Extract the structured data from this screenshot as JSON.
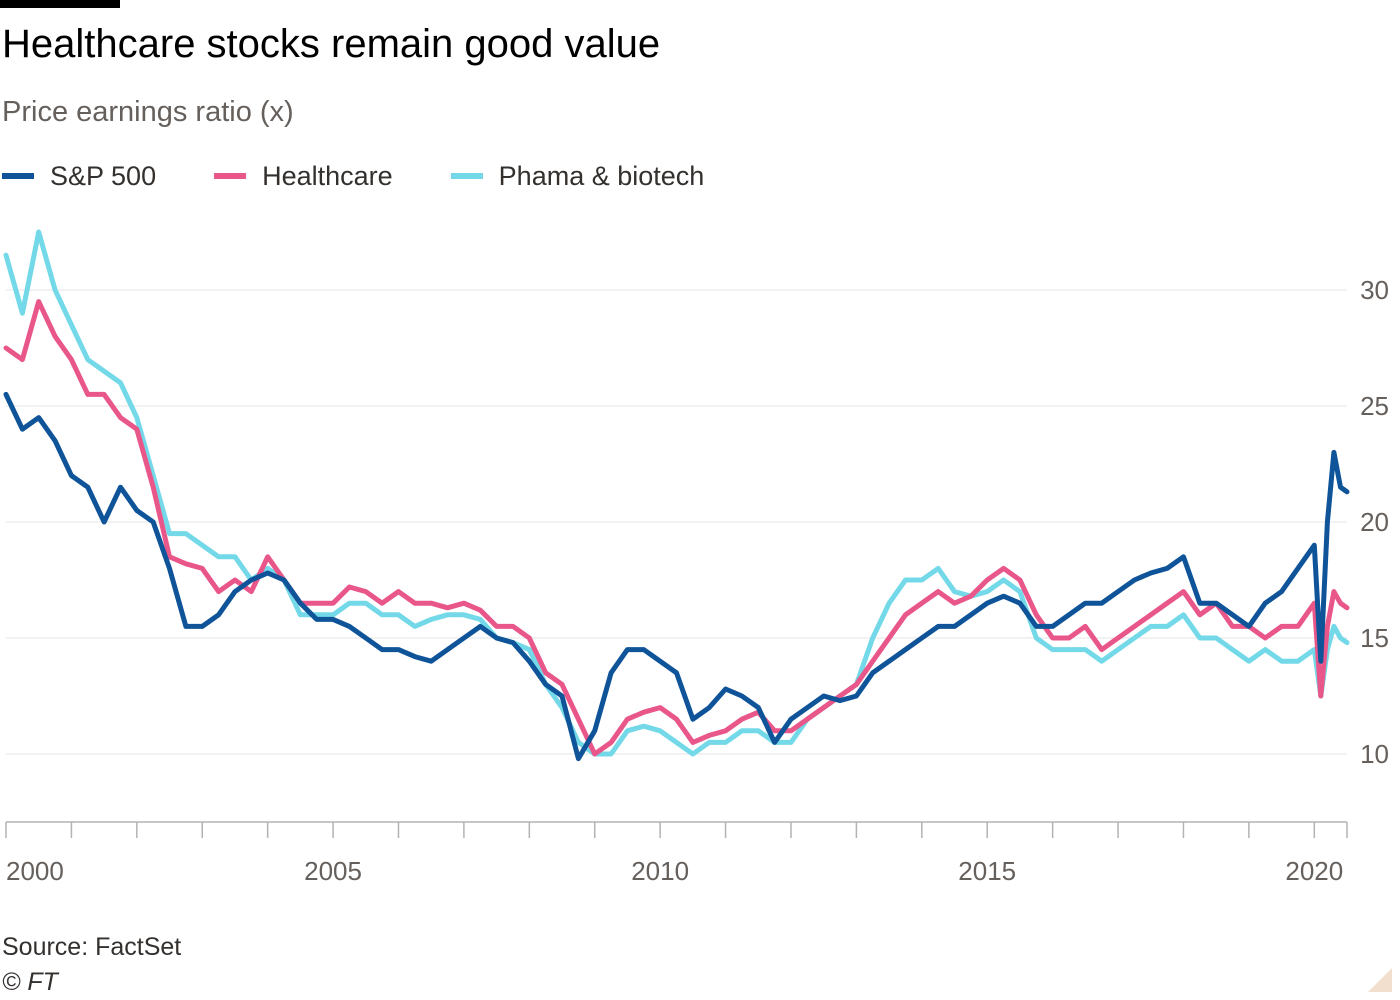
{
  "title": "Healthcare stocks remain good value",
  "subtitle": "Price earnings ratio (x)",
  "source": "Source: FactSet",
  "credit": "© FT",
  "chart_data": {
    "type": "line",
    "title": "Healthcare stocks remain good value",
    "subtitle": "Price earnings ratio (x)",
    "xlabel": "",
    "ylabel": "",
    "xlim": [
      2000,
      2020.5
    ],
    "ylim": [
      7,
      33
    ],
    "x_ticks": [
      2000,
      2005,
      2010,
      2015,
      2020
    ],
    "x_tick_labels": [
      "2000",
      "2005",
      "2010",
      "2015",
      "2020"
    ],
    "y_ticks": [
      10,
      15,
      20,
      25,
      30
    ],
    "y_tick_labels": [
      "10",
      "15",
      "20",
      "25",
      "30"
    ],
    "y_axis_side": "right",
    "grid": "horizontal",
    "legend_position": "top-left",
    "x": [
      2000.0,
      2000.25,
      2000.5,
      2000.75,
      2001.0,
      2001.25,
      2001.5,
      2001.75,
      2002.0,
      2002.25,
      2002.5,
      2002.75,
      2003.0,
      2003.25,
      2003.5,
      2003.75,
      2004.0,
      2004.25,
      2004.5,
      2004.75,
      2005.0,
      2005.25,
      2005.5,
      2005.75,
      2006.0,
      2006.25,
      2006.5,
      2006.75,
      2007.0,
      2007.25,
      2007.5,
      2007.75,
      2008.0,
      2008.25,
      2008.5,
      2008.75,
      2009.0,
      2009.25,
      2009.5,
      2009.75,
      2010.0,
      2010.25,
      2010.5,
      2010.75,
      2011.0,
      2011.25,
      2011.5,
      2011.75,
      2012.0,
      2012.25,
      2012.5,
      2012.75,
      2013.0,
      2013.25,
      2013.5,
      2013.75,
      2014.0,
      2014.25,
      2014.5,
      2014.75,
      2015.0,
      2015.25,
      2015.5,
      2015.75,
      2016.0,
      2016.25,
      2016.5,
      2016.75,
      2017.0,
      2017.25,
      2017.5,
      2017.75,
      2018.0,
      2018.25,
      2018.5,
      2018.75,
      2019.0,
      2019.25,
      2019.5,
      2019.75,
      2020.0,
      2020.1,
      2020.2,
      2020.3,
      2020.4,
      2020.5
    ],
    "series": [
      {
        "name": "S&P 500",
        "color": "#0f5499",
        "values": [
          25.5,
          24.0,
          24.5,
          23.5,
          22.0,
          21.5,
          20.0,
          21.5,
          20.5,
          20.0,
          18.0,
          15.5,
          15.5,
          16.0,
          17.0,
          17.5,
          17.8,
          17.5,
          16.5,
          15.8,
          15.8,
          15.5,
          15.0,
          14.5,
          14.5,
          14.2,
          14.0,
          14.5,
          15.0,
          15.5,
          15.0,
          14.8,
          14.0,
          13.0,
          12.5,
          9.8,
          11.0,
          13.5,
          14.5,
          14.5,
          14.0,
          13.5,
          11.5,
          12.0,
          12.8,
          12.5,
          12.0,
          10.5,
          11.5,
          12.0,
          12.5,
          12.3,
          12.5,
          13.5,
          14.0,
          14.5,
          15.0,
          15.5,
          15.5,
          16.0,
          16.5,
          16.8,
          16.5,
          15.5,
          15.5,
          16.0,
          16.5,
          16.5,
          17.0,
          17.5,
          17.8,
          18.0,
          18.5,
          16.5,
          16.5,
          16.0,
          15.5,
          16.5,
          17.0,
          18.0,
          19.0,
          14.0,
          20.0,
          23.0,
          21.5,
          21.3
        ]
      },
      {
        "name": "Healthcare",
        "color": "#e9578a",
        "values": [
          27.5,
          27.0,
          29.5,
          28.0,
          27.0,
          25.5,
          25.5,
          24.5,
          24.0,
          21.5,
          18.5,
          18.2,
          18.0,
          17.0,
          17.5,
          17.0,
          18.5,
          17.5,
          16.5,
          16.5,
          16.5,
          17.2,
          17.0,
          16.5,
          17.0,
          16.5,
          16.5,
          16.3,
          16.5,
          16.2,
          15.5,
          15.5,
          15.0,
          13.5,
          13.0,
          11.5,
          10.0,
          10.5,
          11.5,
          11.8,
          12.0,
          11.5,
          10.5,
          10.8,
          11.0,
          11.5,
          11.8,
          11.0,
          11.0,
          11.5,
          12.0,
          12.5,
          13.0,
          14.0,
          15.0,
          16.0,
          16.5,
          17.0,
          16.5,
          16.8,
          17.5,
          18.0,
          17.5,
          16.0,
          15.0,
          15.0,
          15.5,
          14.5,
          15.0,
          15.5,
          16.0,
          16.5,
          17.0,
          16.0,
          16.5,
          15.5,
          15.5,
          15.0,
          15.5,
          15.5,
          16.5,
          12.5,
          15.5,
          17.0,
          16.5,
          16.3
        ]
      },
      {
        "name": "Phama & biotech",
        "color": "#73d9e8",
        "values": [
          31.5,
          29.0,
          32.5,
          30.0,
          28.5,
          27.0,
          26.5,
          26.0,
          24.5,
          22.0,
          19.5,
          19.5,
          19.0,
          18.5,
          18.5,
          17.5,
          18.0,
          17.5,
          16.0,
          16.0,
          16.0,
          16.5,
          16.5,
          16.0,
          16.0,
          15.5,
          15.8,
          16.0,
          16.0,
          15.8,
          15.0,
          14.8,
          14.5,
          13.0,
          12.0,
          10.5,
          10.0,
          10.0,
          11.0,
          11.2,
          11.0,
          10.5,
          10.0,
          10.5,
          10.5,
          11.0,
          11.0,
          10.5,
          10.5,
          11.5,
          12.0,
          12.5,
          13.0,
          15.0,
          16.5,
          17.5,
          17.5,
          18.0,
          17.0,
          16.8,
          17.0,
          17.5,
          17.0,
          15.0,
          14.5,
          14.5,
          14.5,
          14.0,
          14.5,
          15.0,
          15.5,
          15.5,
          16.0,
          15.0,
          15.0,
          14.5,
          14.0,
          14.5,
          14.0,
          14.0,
          14.5,
          12.5,
          14.5,
          15.5,
          15.0,
          14.8
        ]
      }
    ]
  }
}
